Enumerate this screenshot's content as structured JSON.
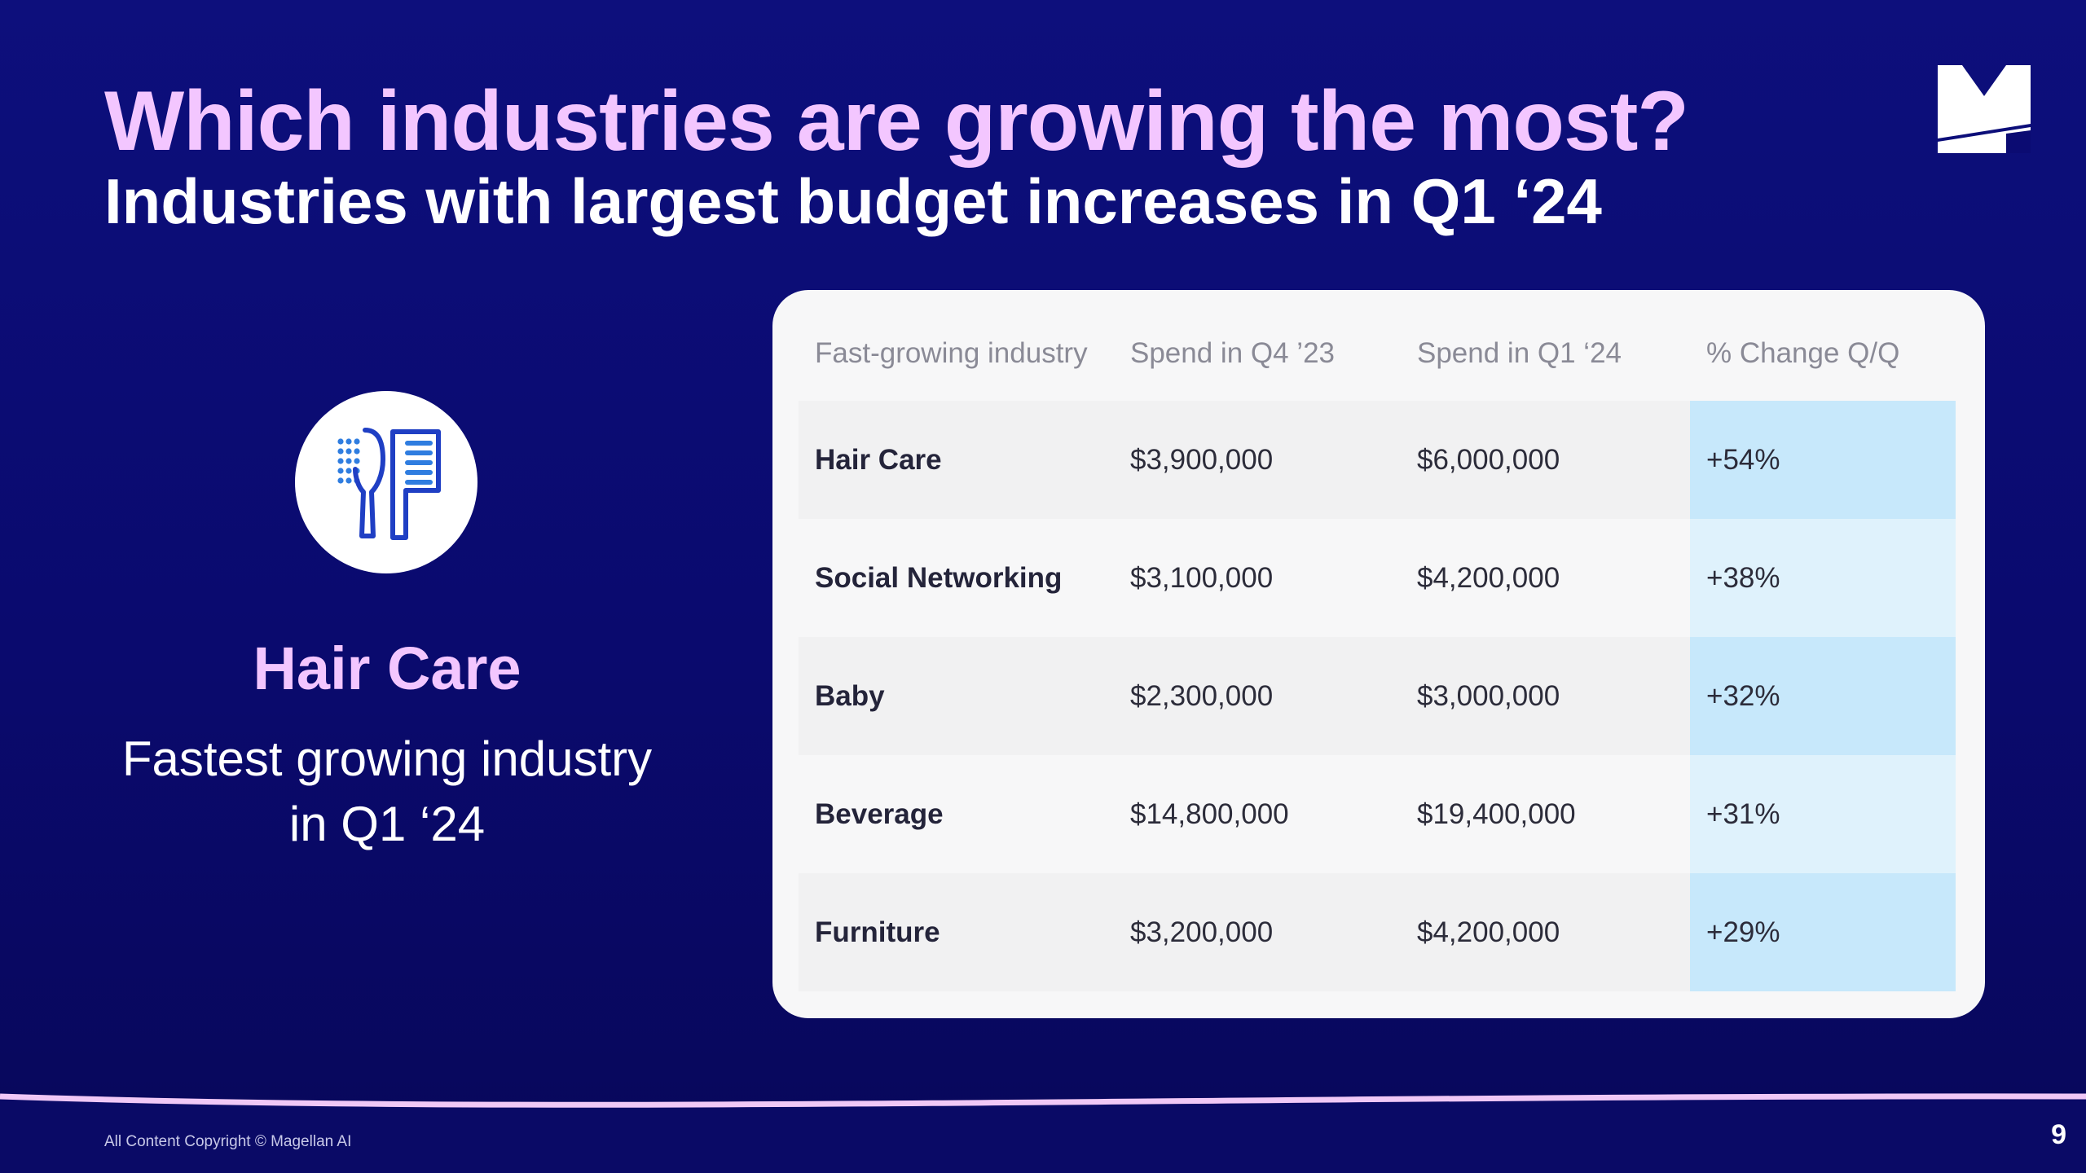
{
  "title": "Which industries are growing the most?",
  "subtitle": "Industries with largest budget increases in Q1 ‘24",
  "feature": {
    "icon": "hair-care-brush-comb-icon",
    "title": "Hair Care",
    "description": "Fastest growing industry in Q1 ‘24"
  },
  "table": {
    "headers": [
      "Fast-growing industry",
      "Spend in Q4 ’23",
      "Spend in Q1 ‘24",
      "% Change Q/Q"
    ],
    "rows": [
      {
        "industry": "Hair Care",
        "q4_2023": "$3,900,000",
        "q1_2024": "$6,000,000",
        "change": "+54%"
      },
      {
        "industry": "Social Networking",
        "q4_2023": "$3,100,000",
        "q1_2024": "$4,200,000",
        "change": "+38%"
      },
      {
        "industry": "Baby",
        "q4_2023": "$2,300,000",
        "q1_2024": "$3,000,000",
        "change": "+32%"
      },
      {
        "industry": "Beverage",
        "q4_2023": "$14,800,000",
        "q1_2024": "$19,400,000",
        "change": "+31%"
      },
      {
        "industry": "Furniture",
        "q4_2023": "$3,200,000",
        "q1_2024": "$4,200,000",
        "change": "+29%"
      }
    ]
  },
  "footer": {
    "copyright": "All Content Copyright © Magellan AI",
    "page_number": "9"
  },
  "logo": "magellan-m-logo",
  "colors": {
    "background": "#0b0b72",
    "title_accent": "#f3c6ff",
    "highlight_column": "#c7e8fb",
    "icon_blue": "#1f3fc4"
  }
}
